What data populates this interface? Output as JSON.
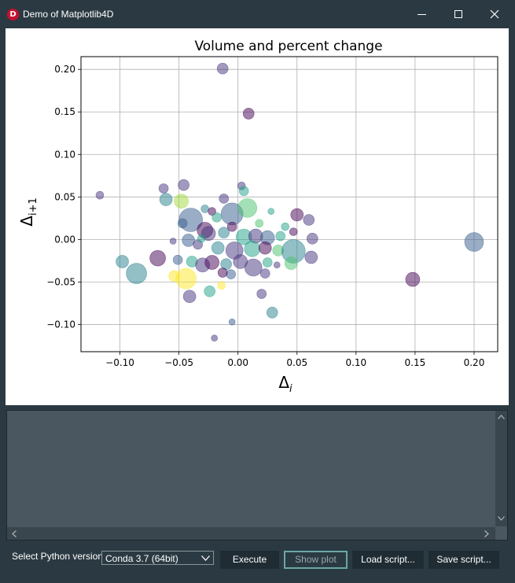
{
  "window": {
    "title": "Demo of Matplotlib4D",
    "icon_letter": "D",
    "controls": [
      "minimize-icon",
      "maximize-icon",
      "close-icon"
    ]
  },
  "bottom": {
    "python_label": "Select Python version :",
    "python_version": "Conda 3.7 (64bit)",
    "execute_label": "Execute",
    "show_plot_label": "Show plot",
    "load_label": "Load script...",
    "save_label": "Save script..."
  },
  "chart_data": {
    "type": "scatter",
    "title": "Volume and percent change",
    "xlabel": "Δ_i",
    "ylabel": "Δ_{i+1}",
    "xlim": [
      -0.133,
      0.22
    ],
    "ylim": [
      -0.132,
      0.215
    ],
    "xticks": [
      -0.1,
      -0.05,
      0.0,
      0.05,
      0.1,
      0.15,
      0.2
    ],
    "xticklabels": [
      "−0.10",
      "−0.05",
      "0.00",
      "0.05",
      "0.10",
      "0.15",
      "0.20"
    ],
    "yticks": [
      0.2,
      0.15,
      0.1,
      0.05,
      0.0,
      -0.05,
      -0.1
    ],
    "yticklabels": [
      "0.20",
      "0.15",
      "0.10",
      "0.05",
      "0.00",
      "−0.05",
      "−0.10"
    ],
    "grid": true,
    "alpha": 0.5,
    "points": [
      {
        "x": -0.013,
        "y": 0.201,
        "s": 7,
        "c": "#46337e"
      },
      {
        "x": 0.009,
        "y": 0.148,
        "s": 7,
        "c": "#440154"
      },
      {
        "x": -0.117,
        "y": 0.052,
        "s": 5,
        "c": "#46337e"
      },
      {
        "x": -0.063,
        "y": 0.06,
        "s": 6,
        "c": "#46337e"
      },
      {
        "x": -0.046,
        "y": 0.064,
        "s": 7,
        "c": "#46337e"
      },
      {
        "x": -0.061,
        "y": 0.047,
        "s": 8,
        "c": "#277f8e"
      },
      {
        "x": -0.048,
        "y": 0.045,
        "s": 9,
        "c": "#a0da39"
      },
      {
        "x": -0.04,
        "y": 0.023,
        "s": 15,
        "c": "#365c8d"
      },
      {
        "x": 0.003,
        "y": 0.063,
        "s": 5,
        "c": "#46337e"
      },
      {
        "x": 0.005,
        "y": 0.057,
        "s": 6,
        "c": "#1fa187"
      },
      {
        "x": -0.012,
        "y": 0.048,
        "s": 6,
        "c": "#46337e"
      },
      {
        "x": -0.005,
        "y": 0.03,
        "s": 14,
        "c": "#365c8d"
      },
      {
        "x": 0.008,
        "y": 0.037,
        "s": 12,
        "c": "#4ac16d"
      },
      {
        "x": -0.028,
        "y": 0.036,
        "s": 5,
        "c": "#277f8e"
      },
      {
        "x": -0.022,
        "y": 0.033,
        "s": 5,
        "c": "#440154"
      },
      {
        "x": -0.018,
        "y": 0.026,
        "s": 6,
        "c": "#1fa187"
      },
      {
        "x": 0.028,
        "y": 0.033,
        "s": 4,
        "c": "#1fa187"
      },
      {
        "x": 0.05,
        "y": 0.029,
        "s": 8,
        "c": "#440154"
      },
      {
        "x": 0.06,
        "y": 0.023,
        "s": 7,
        "c": "#46337e"
      },
      {
        "x": -0.047,
        "y": 0.019,
        "s": 6,
        "c": "#365c8d"
      },
      {
        "x": -0.028,
        "y": 0.011,
        "s": 10,
        "c": "#440154"
      },
      {
        "x": -0.025,
        "y": 0.007,
        "s": 9,
        "c": "#46337e"
      },
      {
        "x": -0.012,
        "y": 0.008,
        "s": 7,
        "c": "#277f8e"
      },
      {
        "x": 0.005,
        "y": 0.003,
        "s": 10,
        "c": "#1fa187"
      },
      {
        "x": 0.015,
        "y": 0.004,
        "s": 9,
        "c": "#46337e"
      },
      {
        "x": 0.025,
        "y": 0.002,
        "s": 9,
        "c": "#365c8d"
      },
      {
        "x": 0.036,
        "y": 0.004,
        "s": 6,
        "c": "#1fa187"
      },
      {
        "x": 0.047,
        "y": 0.009,
        "s": 5,
        "c": "#440154"
      },
      {
        "x": 0.063,
        "y": 0.001,
        "s": 7,
        "c": "#46337e"
      },
      {
        "x": -0.055,
        "y": -0.002,
        "s": 4,
        "c": "#46337e"
      },
      {
        "x": -0.042,
        "y": -0.001,
        "s": 8,
        "c": "#365c8d"
      },
      {
        "x": -0.034,
        "y": -0.006,
        "s": 6,
        "c": "#46337e"
      },
      {
        "x": -0.017,
        "y": -0.01,
        "s": 8,
        "c": "#277f8e"
      },
      {
        "x": -0.003,
        "y": -0.013,
        "s": 11,
        "c": "#46337e"
      },
      {
        "x": 0.012,
        "y": -0.011,
        "s": 10,
        "c": "#1fa187"
      },
      {
        "x": 0.023,
        "y": -0.01,
        "s": 8,
        "c": "#440154"
      },
      {
        "x": 0.034,
        "y": -0.013,
        "s": 7,
        "c": "#4ac16d"
      },
      {
        "x": 0.047,
        "y": -0.014,
        "s": 15,
        "c": "#277f8e"
      },
      {
        "x": 0.2,
        "y": -0.003,
        "s": 12,
        "c": "#365c8d"
      },
      {
        "x": -0.098,
        "y": -0.026,
        "s": 8,
        "c": "#277f8e"
      },
      {
        "x": -0.068,
        "y": -0.022,
        "s": 10,
        "c": "#440154"
      },
      {
        "x": -0.051,
        "y": -0.024,
        "s": 6,
        "c": "#365c8d"
      },
      {
        "x": -0.039,
        "y": -0.026,
        "s": 7,
        "c": "#1fa187"
      },
      {
        "x": -0.03,
        "y": -0.03,
        "s": 9,
        "c": "#46337e"
      },
      {
        "x": -0.022,
        "y": -0.027,
        "s": 9,
        "c": "#440154"
      },
      {
        "x": -0.01,
        "y": -0.029,
        "s": 7,
        "c": "#277f8e"
      },
      {
        "x": 0.002,
        "y": -0.026,
        "s": 9,
        "c": "#46337e"
      },
      {
        "x": 0.013,
        "y": -0.033,
        "s": 11,
        "c": "#46337e"
      },
      {
        "x": 0.025,
        "y": -0.027,
        "s": 6,
        "c": "#1fa187"
      },
      {
        "x": 0.045,
        "y": -0.028,
        "s": 8,
        "c": "#4ac16d"
      },
      {
        "x": 0.062,
        "y": -0.021,
        "s": 8,
        "c": "#46337e"
      },
      {
        "x": -0.086,
        "y": -0.04,
        "s": 13,
        "c": "#277f8e"
      },
      {
        "x": -0.054,
        "y": -0.043,
        "s": 7,
        "c": "#fde725"
      },
      {
        "x": -0.044,
        "y": -0.046,
        "s": 13,
        "c": "#fde725"
      },
      {
        "x": -0.041,
        "y": -0.067,
        "s": 8,
        "c": "#46337e"
      },
      {
        "x": -0.006,
        "y": -0.041,
        "s": 6,
        "c": "#365c8d"
      },
      {
        "x": -0.013,
        "y": -0.039,
        "s": 6,
        "c": "#440154"
      },
      {
        "x": 0.023,
        "y": -0.04,
        "s": 6,
        "c": "#46337e"
      },
      {
        "x": -0.024,
        "y": -0.061,
        "s": 7,
        "c": "#1fa187"
      },
      {
        "x": -0.014,
        "y": -0.054,
        "s": 5,
        "c": "#fde725"
      },
      {
        "x": 0.02,
        "y": -0.064,
        "s": 6,
        "c": "#46337e"
      },
      {
        "x": 0.148,
        "y": -0.047,
        "s": 9,
        "c": "#440154"
      },
      {
        "x": 0.029,
        "y": -0.086,
        "s": 7,
        "c": "#277f8e"
      },
      {
        "x": -0.005,
        "y": -0.097,
        "s": 4,
        "c": "#365c8d"
      },
      {
        "x": -0.02,
        "y": -0.116,
        "s": 4,
        "c": "#46337e"
      },
      {
        "x": 0.033,
        "y": -0.03,
        "s": 4,
        "c": "#46337e"
      },
      {
        "x": 0.018,
        "y": 0.019,
        "s": 5,
        "c": "#4ac16d"
      },
      {
        "x": -0.005,
        "y": 0.015,
        "s": 6,
        "c": "#440154"
      },
      {
        "x": 0.04,
        "y": 0.015,
        "s": 5,
        "c": "#1fa187"
      },
      {
        "x": -0.031,
        "y": 0.001,
        "s": 5,
        "c": "#1fa187"
      }
    ]
  }
}
